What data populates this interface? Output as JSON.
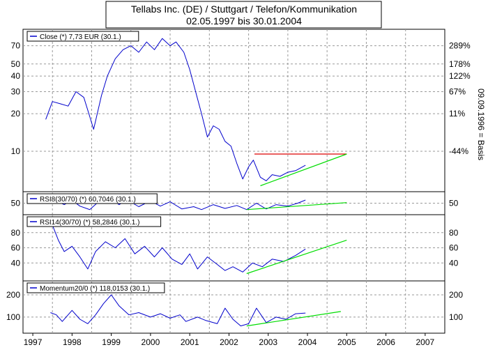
{
  "header": {
    "title": "Tellabs Inc. (DE) / Stuttgart / Telefon/Kommunikation",
    "subtitle": "02.05.1997 bis 30.01.2004"
  },
  "colors": {
    "price_line": "#0000cc",
    "trend_line": "#00dd00",
    "resistance_line": "#dd0000",
    "grid": "#999999",
    "frame": "#000000"
  },
  "chart_data": [
    {
      "type": "line",
      "panel": "price",
      "legend": "Close (*) 7,73 EUR (30.1.)",
      "y_scale": "log",
      "ylim": [
        5,
        90
      ],
      "y_ticks_left": [
        "70",
        "50",
        "40",
        "30",
        "20",
        "10"
      ],
      "y_ticks_right": [
        "289%",
        "178%",
        "122%",
        "67%",
        "11%",
        "-44%"
      ],
      "right_axis_label": "09.09.1996 = Basis",
      "grid": true,
      "series": [
        {
          "kind": "close",
          "points": [
            [
              1997.33,
              18
            ],
            [
              1997.5,
              25
            ],
            [
              1997.7,
              24
            ],
            [
              1997.9,
              23
            ],
            [
              1998.1,
              30
            ],
            [
              1998.3,
              27
            ],
            [
              1998.45,
              19
            ],
            [
              1998.55,
              15
            ],
            [
              1998.75,
              28
            ],
            [
              1998.9,
              40
            ],
            [
              1999.1,
              55
            ],
            [
              1999.3,
              65
            ],
            [
              1999.5,
              70
            ],
            [
              1999.7,
              62
            ],
            [
              1999.9,
              75
            ],
            [
              2000.1,
              65
            ],
            [
              2000.3,
              80
            ],
            [
              2000.5,
              70
            ],
            [
              2000.65,
              75
            ],
            [
              2000.85,
              62
            ],
            [
              2001.0,
              45
            ],
            [
              2001.15,
              30
            ],
            [
              2001.3,
              20
            ],
            [
              2001.45,
              13
            ],
            [
              2001.6,
              16
            ],
            [
              2001.75,
              15
            ],
            [
              2001.9,
              12
            ],
            [
              2002.05,
              11
            ],
            [
              2002.2,
              8
            ],
            [
              2002.35,
              6
            ],
            [
              2002.5,
              7.5
            ],
            [
              2002.62,
              8.5
            ],
            [
              2002.8,
              6.2
            ],
            [
              2002.95,
              5.8
            ],
            [
              2003.1,
              6.5
            ],
            [
              2003.3,
              6.3
            ],
            [
              2003.5,
              6.8
            ],
            [
              2003.7,
              7.0
            ],
            [
              2003.95,
              7.73
            ]
          ]
        },
        {
          "kind": "resistance",
          "points": [
            [
              2002.65,
              9.5
            ],
            [
              2005.0,
              9.5
            ]
          ]
        },
        {
          "kind": "trend",
          "points": [
            [
              2002.8,
              5.3
            ],
            [
              2005.0,
              9.5
            ]
          ]
        }
      ]
    },
    {
      "type": "line",
      "panel": "rsi8",
      "legend": "RSI8(30/70) (*) 60,7046 (30.1.)",
      "ylim": [
        20,
        80
      ],
      "y_ticks_left": [
        "50"
      ],
      "y_ticks_right": [
        "50"
      ],
      "grid": true,
      "series": [
        {
          "kind": "indicator",
          "points": [
            [
              1997.4,
              50
            ],
            [
              1997.6,
              58
            ],
            [
              1997.8,
              45
            ],
            [
              1998.0,
              60
            ],
            [
              1998.2,
              40
            ],
            [
              1998.45,
              28
            ],
            [
              1998.7,
              58
            ],
            [
              1999.0,
              62
            ],
            [
              1999.2,
              45
            ],
            [
              1999.4,
              62
            ],
            [
              1999.7,
              38
            ],
            [
              2000.0,
              58
            ],
            [
              2000.25,
              40
            ],
            [
              2000.5,
              55
            ],
            [
              2000.8,
              30
            ],
            [
              2001.1,
              38
            ],
            [
              2001.3,
              28
            ],
            [
              2001.6,
              45
            ],
            [
              2001.9,
              32
            ],
            [
              2002.2,
              42
            ],
            [
              2002.45,
              28
            ],
            [
              2002.7,
              50
            ],
            [
              2002.95,
              30
            ],
            [
              2003.2,
              45
            ],
            [
              2003.5,
              40
            ],
            [
              2003.75,
              50
            ],
            [
              2003.95,
              60.7
            ]
          ]
        },
        {
          "kind": "trend",
          "points": [
            [
              2002.45,
              28
            ],
            [
              2005.0,
              52
            ]
          ]
        }
      ]
    },
    {
      "type": "line",
      "panel": "rsi14",
      "legend": "RSI14(30/70) (*) 58,2846 (30.1.)",
      "ylim": [
        20,
        100
      ],
      "y_ticks_left": [
        "80",
        "60",
        "40"
      ],
      "y_ticks_right": [
        "80",
        "60",
        "40"
      ],
      "grid": true,
      "series": [
        {
          "kind": "indicator",
          "points": [
            [
              1997.5,
              90
            ],
            [
              1997.65,
              70
            ],
            [
              1997.8,
              55
            ],
            [
              1998.0,
              62
            ],
            [
              1998.2,
              48
            ],
            [
              1998.4,
              32
            ],
            [
              1998.6,
              55
            ],
            [
              1998.85,
              68
            ],
            [
              1999.1,
              60
            ],
            [
              1999.35,
              72
            ],
            [
              1999.6,
              52
            ],
            [
              1999.85,
              62
            ],
            [
              2000.1,
              48
            ],
            [
              2000.3,
              60
            ],
            [
              2000.55,
              45
            ],
            [
              2000.8,
              38
            ],
            [
              2001.0,
              52
            ],
            [
              2001.2,
              32
            ],
            [
              2001.45,
              48
            ],
            [
              2001.7,
              38
            ],
            [
              2001.9,
              30
            ],
            [
              2002.1,
              35
            ],
            [
              2002.35,
              28
            ],
            [
              2002.6,
              40
            ],
            [
              2002.85,
              35
            ],
            [
              2003.1,
              45
            ],
            [
              2003.4,
              42
            ],
            [
              2003.7,
              50
            ],
            [
              2003.95,
              58.3
            ]
          ]
        },
        {
          "kind": "trend",
          "points": [
            [
              2002.45,
              26
            ],
            [
              2005.0,
              70
            ]
          ]
        }
      ]
    },
    {
      "type": "line",
      "panel": "momentum",
      "legend": "Momentum20/0 (*) 118,0153 (30.1.)",
      "ylim": [
        40,
        250
      ],
      "y_ticks_left": [
        "200",
        "100"
      ],
      "y_ticks_right": [
        "200",
        "100"
      ],
      "grid": true,
      "series": [
        {
          "kind": "indicator",
          "points": [
            [
              1997.45,
              120
            ],
            [
              1997.6,
              110
            ],
            [
              1997.75,
              80
            ],
            [
              1998.0,
              130
            ],
            [
              1998.2,
              90
            ],
            [
              1998.4,
              70
            ],
            [
              1998.6,
              110
            ],
            [
              1998.8,
              160
            ],
            [
              1999.0,
              200
            ],
            [
              1999.2,
              150
            ],
            [
              1999.45,
              110
            ],
            [
              1999.7,
              120
            ],
            [
              2000.0,
              100
            ],
            [
              2000.25,
              115
            ],
            [
              2000.5,
              95
            ],
            [
              2000.75,
              110
            ],
            [
              2000.9,
              80
            ],
            [
              2001.2,
              100
            ],
            [
              2001.4,
              85
            ],
            [
              2001.7,
              70
            ],
            [
              2001.9,
              140
            ],
            [
              2002.1,
              90
            ],
            [
              2002.3,
              60
            ],
            [
              2002.5,
              70
            ],
            [
              2002.7,
              140
            ],
            [
              2002.95,
              75
            ],
            [
              2003.2,
              100
            ],
            [
              2003.45,
              90
            ],
            [
              2003.7,
              115
            ],
            [
              2003.95,
              118
            ]
          ]
        },
        {
          "kind": "trend",
          "points": [
            [
              2002.45,
              60
            ],
            [
              2004.85,
              125
            ]
          ]
        }
      ]
    }
  ],
  "x_axis": {
    "range": [
      1996.75,
      2007.5
    ],
    "ticks": [
      {
        "value": 1997,
        "label": "1997"
      },
      {
        "value": 1998,
        "label": "1998"
      },
      {
        "value": 1999,
        "label": "1999"
      },
      {
        "value": 2000,
        "label": "2000"
      },
      {
        "value": 2001,
        "label": "2001"
      },
      {
        "value": 2002,
        "label": "2002"
      },
      {
        "value": 2003,
        "label": "2003"
      },
      {
        "value": 2004,
        "label": "2004"
      },
      {
        "value": 2005,
        "label": "2005"
      },
      {
        "value": 2006,
        "label": "2006"
      },
      {
        "value": 2007,
        "label": "2007"
      }
    ]
  }
}
